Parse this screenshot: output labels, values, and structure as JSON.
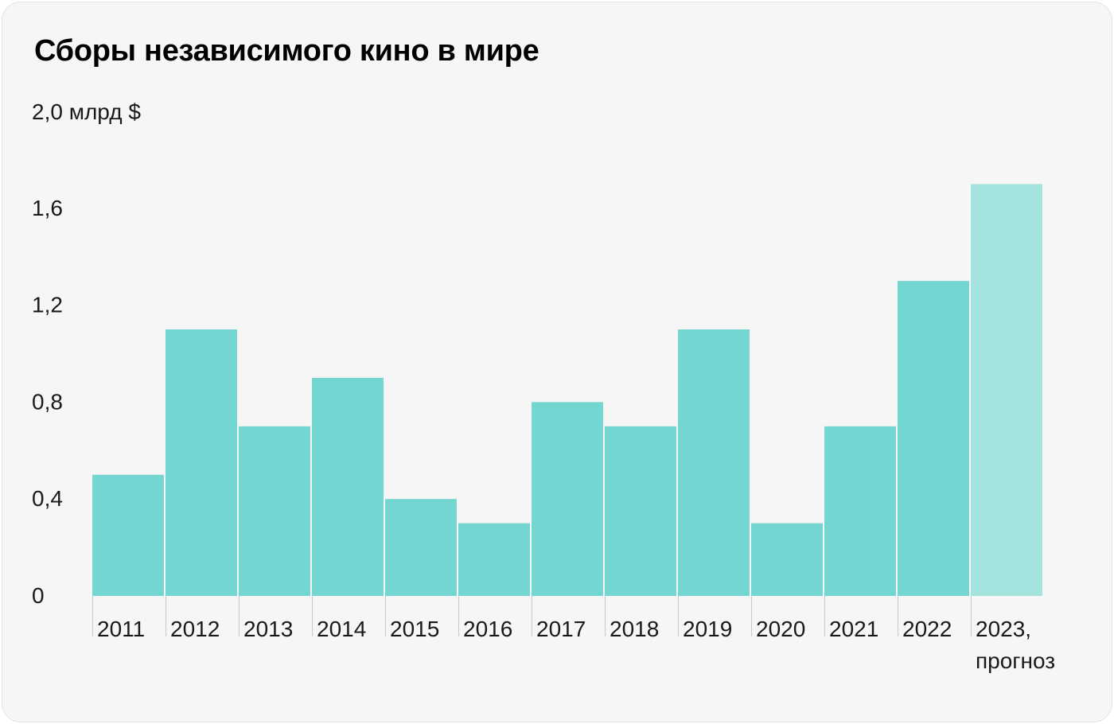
{
  "title": "Сборы независимого кино в мире",
  "colors": {
    "bar": "#73d6d1",
    "forecast_bar": "#a5e3df",
    "background": "#f6f6f6"
  },
  "chart_data": {
    "type": "bar",
    "title": "Сборы независимого кино в мире",
    "y_unit_label": "2,0 млрд $",
    "xlabel": "",
    "ylabel": "",
    "ylim": [
      0,
      2.0
    ],
    "y_ticks": [
      {
        "value": 0,
        "label": "0"
      },
      {
        "value": 0.4,
        "label": "0,4"
      },
      {
        "value": 0.8,
        "label": "0,8"
      },
      {
        "value": 1.2,
        "label": "1,2"
      },
      {
        "value": 1.6,
        "label": "1,6"
      },
      {
        "value": 2.0,
        "label": "2,0 млрд $"
      }
    ],
    "grid": false,
    "categories": [
      "2011",
      "2012",
      "2013",
      "2014",
      "2015",
      "2016",
      "2017",
      "2018",
      "2019",
      "2020",
      "2021",
      "2022",
      "2023, прогноз"
    ],
    "category_label_lines": [
      [
        "2011"
      ],
      [
        "2012"
      ],
      [
        "2013"
      ],
      [
        "2014"
      ],
      [
        "2015"
      ],
      [
        "2016"
      ],
      [
        "2017"
      ],
      [
        "2018"
      ],
      [
        "2019"
      ],
      [
        "2020"
      ],
      [
        "2021"
      ],
      [
        "2022"
      ],
      [
        "2023,",
        "прогноз"
      ]
    ],
    "values": [
      0.5,
      1.1,
      0.7,
      0.9,
      0.4,
      0.3,
      0.8,
      0.7,
      1.1,
      0.3,
      0.7,
      1.3,
      1.7
    ],
    "forecast": [
      false,
      false,
      false,
      false,
      false,
      false,
      false,
      false,
      false,
      false,
      false,
      false,
      true
    ]
  }
}
